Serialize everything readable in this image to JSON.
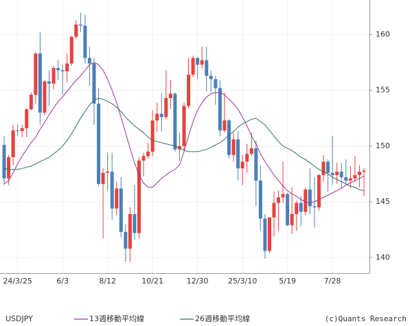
{
  "chart_data": {
    "type": "candlestick",
    "categories": [
      null,
      null,
      null,
      "24/3/25",
      null,
      null,
      null,
      null,
      null,
      null,
      null,
      null,
      null,
      "6/3",
      null,
      null,
      null,
      null,
      null,
      null,
      null,
      null,
      null,
      "8/12",
      null,
      null,
      null,
      null,
      null,
      null,
      null,
      null,
      null,
      "10/21",
      null,
      null,
      null,
      null,
      null,
      null,
      null,
      null,
      null,
      "12/30",
      null,
      null,
      null,
      null,
      null,
      null,
      null,
      null,
      null,
      "25/3/10",
      null,
      null,
      null,
      null,
      null,
      null,
      null,
      null,
      null,
      "5/19",
      null,
      null,
      null,
      null,
      null,
      null,
      null,
      null,
      null,
      "7/28",
      null,
      null,
      null,
      null,
      null,
      null,
      null
    ],
    "series": [
      {
        "name": "USDJPY",
        "up_color": "#e8413c",
        "down_color": "#4a80b8",
        "open": [
          150.1,
          147.1,
          149.0,
          151.4,
          151.35,
          151.6,
          153.3,
          154.6,
          158.3,
          153.0,
          155.8,
          155.6,
          157.0,
          156.8,
          156.7,
          157.4,
          159.8,
          160.9,
          160.8,
          157.9,
          157.4,
          153.8,
          146.6,
          147.6,
          147.7,
          144.4,
          146.2,
          142.3,
          140.8,
          143.9,
          142.2,
          148.7,
          149.1,
          149.5,
          152.3,
          152.9,
          152.6,
          154.3,
          154.7,
          149.7,
          150.0,
          153.6,
          156.4,
          157.9,
          157.3,
          157.7,
          156.3,
          156.0,
          155.2,
          151.4,
          152.3,
          149.2,
          150.6,
          148.0,
          148.6,
          149.3,
          149.8,
          146.9,
          143.5,
          140.6,
          143.6,
          144.9,
          145.4,
          145.7,
          142.9,
          143.9,
          144.9,
          144.1,
          146.1,
          144.6,
          144.5,
          147.4,
          148.6,
          147.6,
          147.4,
          147.7,
          147.2,
          146.9,
          147.1,
          147.4,
          147.7
        ],
        "high": [
          150.9,
          149.2,
          151.9,
          151.97,
          151.9,
          153.4,
          154.8,
          158.4,
          160.2,
          155.9,
          156.8,
          157.2,
          157.7,
          157.3,
          158.3,
          159.9,
          161.3,
          161.95,
          161.8,
          158.9,
          157.9,
          155.2,
          148.0,
          149.4,
          149.4,
          146.8,
          147.2,
          143.0,
          144.5,
          146.5,
          149.0,
          149.4,
          150.3,
          153.2,
          153.9,
          154.7,
          156.8,
          155.9,
          154.8,
          151.2,
          153.9,
          157.9,
          158.1,
          158.0,
          158.9,
          158.9,
          156.8,
          156.3,
          155.9,
          154.8,
          152.4,
          151.2,
          151.3,
          149.2,
          150.2,
          151.2,
          150.5,
          148.3,
          143.9,
          143.6,
          145.9,
          146.0,
          148.6,
          145.8,
          146.3,
          145.1,
          145.5,
          146.3,
          148.0,
          147.2,
          147.5,
          149.2,
          148.8,
          150.9,
          148.5,
          148.5,
          148.8,
          148.2,
          149.1,
          148.3,
          148.0
        ],
        "low": [
          146.5,
          146.5,
          148.3,
          150.9,
          150.8,
          150.8,
          153.2,
          153.8,
          151.9,
          152.8,
          153.6,
          155.1,
          155.9,
          154.6,
          155.7,
          157.2,
          159.6,
          160.2,
          157.4,
          155.4,
          151.9,
          146.4,
          141.7,
          146.0,
          143.4,
          143.8,
          141.8,
          139.6,
          139.6,
          141.6,
          141.7,
          147.3,
          148.9,
          149.1,
          151.3,
          151.3,
          152.4,
          153.3,
          149.5,
          148.7,
          149.6,
          153.4,
          156.2,
          156.0,
          156.9,
          154.9,
          154.8,
          153.7,
          150.9,
          151.2,
          148.9,
          148.6,
          146.9,
          146.5,
          147.6,
          149.1,
          144.6,
          142.4,
          139.9,
          140.4,
          141.9,
          142.4,
          144.9,
          142.8,
          142.1,
          142.4,
          142.8,
          143.8,
          143.9,
          142.7,
          144.2,
          146.8,
          145.9,
          146.5,
          146.6,
          146.2,
          146.6,
          146.2,
          146.8,
          146.3,
          145.5
        ],
        "close": [
          147.1,
          149.0,
          151.4,
          151.35,
          151.6,
          153.3,
          154.6,
          158.3,
          153.0,
          155.8,
          155.6,
          157.0,
          156.8,
          156.7,
          157.4,
          159.8,
          160.9,
          160.8,
          157.9,
          157.4,
          153.8,
          146.6,
          147.6,
          147.7,
          144.4,
          146.2,
          142.3,
          140.8,
          143.9,
          142.2,
          148.7,
          149.1,
          149.5,
          152.3,
          152.9,
          152.6,
          154.3,
          154.7,
          149.7,
          150.0,
          153.6,
          156.4,
          157.9,
          157.3,
          157.7,
          156.3,
          156.0,
          155.2,
          151.4,
          152.3,
          149.2,
          150.6,
          148.0,
          148.6,
          149.3,
          149.8,
          146.9,
          143.5,
          140.6,
          143.6,
          144.9,
          145.4,
          145.7,
          142.9,
          143.9,
          144.9,
          144.1,
          146.1,
          144.6,
          144.5,
          147.4,
          148.6,
          147.6,
          147.4,
          147.7,
          147.2,
          146.9,
          147.1,
          147.4,
          147.7,
          147.8
        ]
      },
      {
        "name": "13週移動平均線",
        "color": "#993399",
        "values": [
          146.6,
          146.9,
          147.6,
          148.4,
          149.1,
          149.7,
          150.3,
          150.8,
          151.5,
          152.1,
          152.8,
          153.4,
          154.0,
          154.4,
          154.9,
          155.4,
          155.9,
          156.3,
          156.8,
          157.3,
          157.5,
          157.3,
          156.8,
          156.0,
          155.0,
          153.9,
          152.6,
          151.2,
          149.8,
          148.5,
          147.4,
          146.7,
          146.3,
          146.3,
          146.7,
          147.1,
          147.4,
          147.7,
          147.9,
          148.3,
          149.5,
          150.9,
          152.2,
          153.2,
          153.9,
          154.4,
          154.7,
          154.8,
          154.8,
          154.6,
          154.2,
          153.8,
          153.3,
          152.6,
          151.8,
          150.9,
          150.2,
          149.3,
          148.6,
          148.0,
          147.4,
          146.9,
          146.4,
          146.0,
          145.7,
          145.5,
          145.2,
          145.0,
          144.9,
          145.0,
          145.2,
          145.4,
          145.6,
          145.8,
          146.0,
          146.2,
          146.5,
          146.7,
          146.9,
          147.1,
          147.3
        ]
      },
      {
        "name": "26週移動平均線",
        "color": "#2e6b6b",
        "values": [
          148.0,
          147.9,
          147.9,
          147.9,
          148.0,
          148.1,
          148.2,
          148.4,
          148.6,
          148.8,
          149.0,
          149.3,
          149.6,
          150.0,
          150.5,
          151.1,
          151.8,
          152.5,
          153.1,
          153.7,
          154.1,
          154.3,
          154.2,
          154.0,
          153.8,
          153.5,
          153.1,
          152.6,
          152.2,
          151.8,
          151.5,
          151.2,
          150.8,
          150.5,
          150.4,
          150.3,
          150.2,
          150.1,
          150.0,
          149.8,
          149.6,
          149.5,
          149.5,
          149.5,
          149.6,
          149.7,
          149.9,
          150.1,
          150.3,
          150.6,
          151.0,
          151.3,
          151.7,
          152.0,
          152.2,
          152.4,
          152.5,
          152.2,
          151.9,
          151.4,
          150.9,
          150.4,
          150.0,
          149.8,
          149.6,
          149.3,
          149.0,
          148.8,
          148.5,
          148.2,
          147.9,
          147.7,
          147.5,
          147.2,
          147.0,
          146.8,
          146.6,
          146.4,
          146.3,
          146.1,
          146.0
        ]
      }
    ],
    "ylim": [
      138.6,
      163.1
    ],
    "yticks": [
      140,
      145,
      150,
      155,
      160
    ],
    "grid": true,
    "credit": "(c)Quants Research"
  }
}
